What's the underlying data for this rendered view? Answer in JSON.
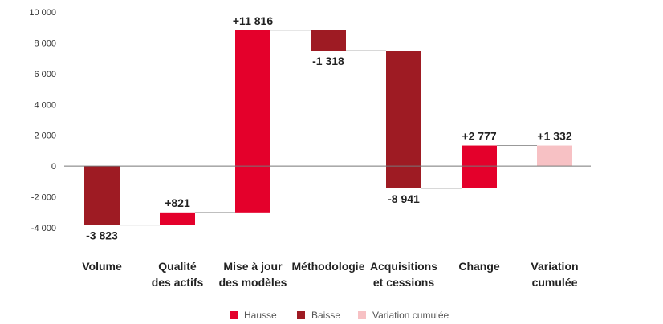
{
  "chart_data": {
    "type": "waterfall",
    "y_ticks": [
      "10 000",
      "8 000",
      "6 000",
      "4 000",
      "2 000",
      "0",
      "-2 000",
      "-4 000"
    ],
    "y_tick_values": [
      10000,
      8000,
      6000,
      4000,
      2000,
      0,
      -2000,
      -4000
    ],
    "ylim": [
      -4000,
      10000
    ],
    "grid": false,
    "legend_position": "bottom-center",
    "colors": {
      "hausse": "#e4002b",
      "baisse": "#9e1b23",
      "cumul": "#f7c1c4",
      "connector": "#999999",
      "axis": "#777777"
    },
    "steps": [
      {
        "category": [
          "Volume"
        ],
        "value": -3823,
        "label": "-3 823",
        "kind": "baisse"
      },
      {
        "category": [
          "Qualité",
          "des actifs"
        ],
        "value": 821,
        "label": "+821",
        "kind": "hausse"
      },
      {
        "category": [
          "Mise à jour",
          "des modèles"
        ],
        "value": 11816,
        "label": "+11 816",
        "kind": "hausse"
      },
      {
        "category": [
          "Méthodologie"
        ],
        "value": -1318,
        "label": "-1 318",
        "kind": "baisse"
      },
      {
        "category": [
          "Acquisitions",
          "et cessions"
        ],
        "value": -8941,
        "label": "-8 941",
        "kind": "baisse"
      },
      {
        "category": [
          "Change"
        ],
        "value": 2777,
        "label": "+2 777",
        "kind": "hausse"
      },
      {
        "category": [
          "Variation",
          "cumulée"
        ],
        "value": 1332,
        "label": "+1 332",
        "kind": "cumul"
      }
    ],
    "legend": [
      {
        "label": "Hausse",
        "kind": "hausse"
      },
      {
        "label": "Baisse",
        "kind": "baisse"
      },
      {
        "label": "Variation cumulée",
        "kind": "cumul"
      }
    ]
  }
}
